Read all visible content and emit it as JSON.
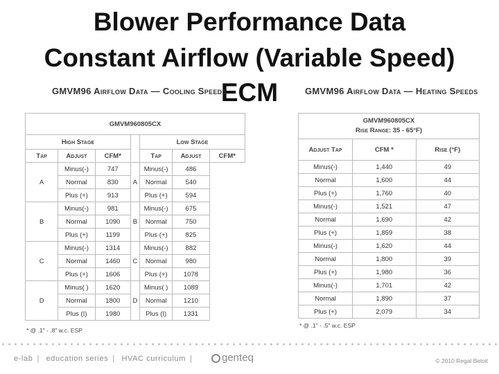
{
  "title": {
    "line1": "Blower Performance Data",
    "line2": "Constant Airflow (Variable Speed)",
    "line3": "ECM"
  },
  "cooling": {
    "subtitle": "GMVM96 Airflow Data — Cooling Speeds",
    "model": "GMVM960805CX",
    "high_stage": "High Stage",
    "low_stage": "Low Stage",
    "col_tap": "Tap",
    "col_adjust": "Adjust",
    "col_cfm": "CFM*",
    "taps": [
      "A",
      "B",
      "C",
      "D"
    ],
    "adjust": [
      "Minus(-)",
      "Normal",
      "Plus (+)",
      "Minus(-)",
      "Normal",
      "Plus (+)",
      "Minus(-)",
      "Normal",
      "Plus (+)",
      "Minus( )",
      "Normal",
      "Plus (I)"
    ],
    "adjust_low": [
      "Minus(-)",
      "Normal",
      "Plus (+)",
      "Minus(-)",
      "Normal",
      "Plus (+)",
      "Minus(-)",
      "Normal",
      "Plus (+)",
      "Minus( )",
      "Normal",
      "Plus (I)"
    ],
    "high_cfm": [
      "747",
      "830",
      "913",
      "981",
      "1090",
      "1199",
      "1314",
      "1460",
      "1606",
      "1620",
      "1800",
      "1980"
    ],
    "low_cfm": [
      "486",
      "540",
      "594",
      "675",
      "750",
      "825",
      "882",
      "980",
      "1078",
      "1089",
      "1210",
      "1331"
    ],
    "footnote": "* @ .1\" - .8\" w.c. ESP"
  },
  "heating": {
    "subtitle": "GMVM96 Airflow Data — Heating Speeds",
    "model": "GMVM960805CX",
    "rise_range": "Rise Range: 35 - 65°F)",
    "col_adjust": "Adjust Tap",
    "col_cfm": "CFM *",
    "col_rise": "Rise (°F)",
    "adjust": [
      "Minus(-)",
      "Normal",
      "Plus (+)",
      "Minus(-)",
      "Normal",
      "Plus (+)",
      "Minus(-)",
      "Normal",
      "Plus (+)",
      "Minus(-)",
      "Normal",
      "Plus (+)"
    ],
    "cfm": [
      "1,440",
      "1,600",
      "1,760",
      "1,521",
      "1,690",
      "1,859",
      "1,620",
      "1,800",
      "1,980",
      "1,701",
      "1,890",
      "2,079"
    ],
    "rise": [
      "49",
      "44",
      "40",
      "47",
      "42",
      "38",
      "44",
      "39",
      "36",
      "42",
      "37",
      "34"
    ],
    "footnote": "* @ .1\" - .5\" w.c. ESP"
  },
  "footer": {
    "elab": "e-lab",
    "series": "education series",
    "curriculum": "HVAC curriculum",
    "brand": "genteq",
    "copyright": "© 2010 Regal Beloit"
  }
}
